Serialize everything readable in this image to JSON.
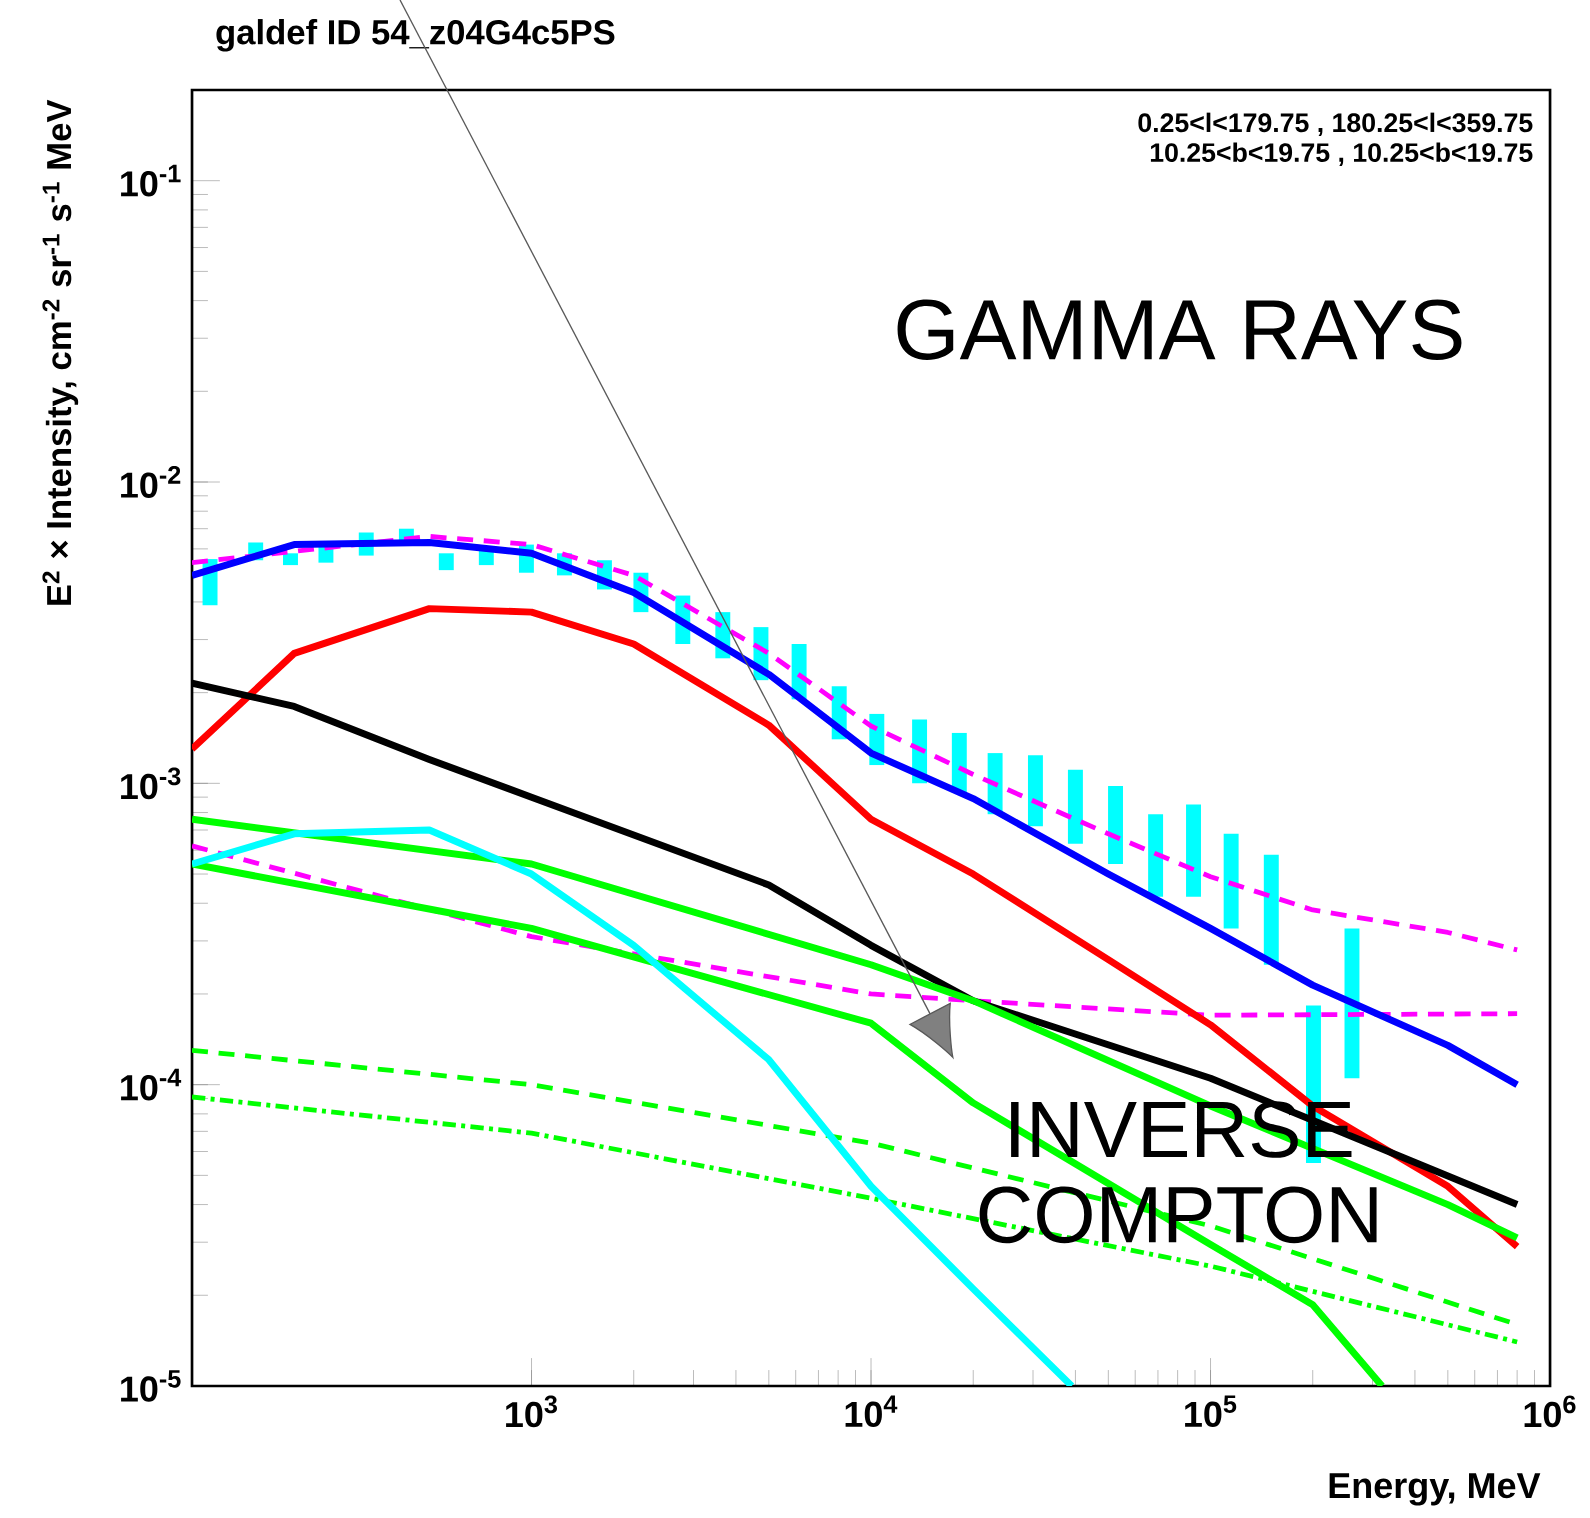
{
  "chart_data": {
    "type": "line",
    "title": "galdef ID 54_z04G4c5PS",
    "xlabel": "Energy, MeV",
    "ylabel": "E$^{2}$ × Intensity, cm$^{-2}$ sr$^{-1}$ s$^{-1}$ MeV",
    "log": "xy",
    "grid": false,
    "xlim": [
      100,
      1000000
    ],
    "ylim": [
      1e-05,
      0.2
    ],
    "xticks": [
      {
        "value": 1000,
        "label": "10$^{3}$"
      },
      {
        "value": 10000,
        "label": "10$^{4}$"
      },
      {
        "value": 100000,
        "label": "10$^{5}$"
      },
      {
        "value": 1000000,
        "label": "10$^{6}$"
      }
    ],
    "yticks": [
      {
        "value": 1e-05,
        "label": "10$^{-5}$"
      },
      {
        "value": 0.0001,
        "label": "10$^{-4}$"
      },
      {
        "value": 0.001,
        "label": "10$^{-3}$"
      },
      {
        "value": 0.01,
        "label": "10$^{-2}$"
      },
      {
        "value": 0.1,
        "label": "10$^{-1}$"
      }
    ],
    "annotations": [
      "0.25<l<179.75 , 180.25<l<359.75",
      "10.25<b<19.75 , 10.25<b<19.75",
      "GAMMA RAYS",
      "INVERSE COMPTON"
    ],
    "series": [
      {
        "type": "bar",
        "color": "#00ffff",
        "x": [
          113,
          154,
          195,
          248,
          326,
          428,
          561,
          736,
          966,
          1250,
          1640,
          2100,
          2790,
          3660,
          4740,
          6140,
          8060,
          10400,
          13900,
          18200,
          23200,
          30500,
          40000,
          52500,
          68900,
          89100,
          115000,
          151000,
          201000,
          261000
        ],
        "base": [
          0.0039,
          0.0055,
          0.0053,
          0.0054,
          0.0057,
          0.0062,
          0.0051,
          0.0053,
          0.005,
          0.0049,
          0.0044,
          0.0037,
          0.0029,
          0.0026,
          0.0022,
          0.0019,
          0.0014,
          0.00115,
          0.001,
          0.00093,
          0.00079,
          0.00072,
          0.00063,
          0.00054,
          0.00042,
          0.00042,
          0.00033,
          0.00025,
          5.5e-05,
          0.000105
        ],
        "values": [
          0.00165,
          0.0008,
          0.0005,
          0.0008,
          0.0011,
          0.0008,
          0.0007,
          0.0007,
          0.0012,
          0.0009,
          0.0011,
          0.0013,
          0.0013,
          0.0011,
          0.0011,
          0.001,
          0.0007,
          0.00055,
          0.00063,
          0.00054,
          0.00047,
          0.00052,
          0.00048,
          0.00044,
          0.00037,
          0.00043,
          0.00035,
          0.00033,
          0.000128,
          0.000225
        ]
      },
      {
        "color": "#ff00ff",
        "line_style": "dashed",
        "x": [
          100,
          500,
          1000,
          2000,
          5000,
          10000,
          20000,
          50000,
          100000,
          200000,
          500000,
          800000
        ],
        "values": [
          0.0054,
          0.0066,
          0.0062,
          0.0049,
          0.0027,
          0.00155,
          0.00107,
          0.00068,
          0.00049,
          0.00038,
          0.00032,
          0.00028
        ]
      },
      {
        "color": "#ff00ff",
        "line_style": "dashed",
        "x": [
          100,
          1000,
          10000,
          20000,
          100000,
          800000
        ],
        "values": [
          0.00062,
          0.00031,
          0.0002,
          0.00019,
          0.00017,
          0.000172
        ]
      },
      {
        "color": "#0000ff",
        "line_style": "solid",
        "x": [
          100,
          200,
          500,
          1000,
          2000,
          5000,
          10000,
          20000,
          50000,
          100000,
          200000,
          500000,
          800000
        ],
        "values": [
          0.0049,
          0.0062,
          0.0063,
          0.0058,
          0.0043,
          0.0023,
          0.00126,
          0.00089,
          0.0005,
          0.00033,
          0.000214,
          0.000135,
          0.0001
        ]
      },
      {
        "color": "#ff0000",
        "line_style": "solid",
        "x": [
          100,
          200,
          500,
          1000,
          2000,
          5000,
          10000,
          20000,
          50000,
          100000,
          200000,
          500000,
          800000
        ],
        "values": [
          0.0013,
          0.0027,
          0.0038,
          0.0037,
          0.0029,
          0.00156,
          0.00076,
          0.0005,
          0.00026,
          0.000158,
          8.5e-05,
          4.6e-05,
          2.9e-05
        ]
      },
      {
        "color": "#000000",
        "line_style": "solid",
        "x": [
          100,
          200,
          500,
          1000,
          5000,
          10000,
          20000,
          100000,
          800000
        ],
        "values": [
          0.00215,
          0.0018,
          0.0012,
          0.0009,
          0.00046,
          0.00029,
          0.00019,
          0.000105,
          4e-05
        ]
      },
      {
        "color": "#00ff00",
        "line_style": "solid",
        "x": [
          100,
          1000,
          10000,
          20000,
          100000,
          500000,
          800000
        ],
        "values": [
          0.00076,
          0.00054,
          0.00025,
          0.00019,
          8.5e-05,
          4e-05,
          3.1e-05
        ]
      },
      {
        "color": "#00ff00",
        "line_style": "solid",
        "x": [
          100,
          1000,
          10000,
          20000,
          100000,
          200000,
          320000
        ],
        "values": [
          0.00054,
          0.00033,
          0.00016,
          8.7e-05,
          2.95e-05,
          1.86e-05,
          1e-05
        ]
      },
      {
        "color": "#00ff00",
        "line_style": "dashed",
        "x": [
          100,
          1000,
          10000,
          100000,
          800000
        ],
        "values": [
          0.00013,
          0.0001,
          6.4e-05,
          3.4e-05,
          1.6e-05
        ]
      },
      {
        "color": "#00ff00",
        "line_style": "dotted",
        "x": [
          100,
          1000,
          10000,
          100000,
          800000
        ],
        "values": [
          9.1e-05,
          6.9e-05,
          4.2e-05,
          2.5e-05,
          1.4e-05
        ]
      },
      {
        "color": "#00ffff",
        "line_style": "solid",
        "x": [
          100,
          200,
          500,
          1000,
          2000,
          5000,
          10000,
          20000,
          39000
        ],
        "values": [
          0.00054,
          0.00068,
          0.0007,
          0.0005,
          0.00029,
          0.000121,
          4.6e-05,
          2.1e-05,
          1e-05
        ]
      }
    ]
  }
}
